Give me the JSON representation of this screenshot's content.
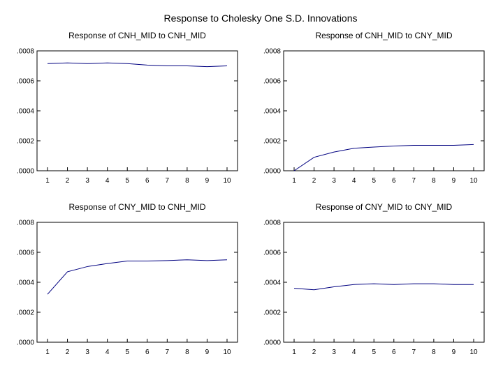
{
  "title": "Response to Cholesky One S.D. Innovations",
  "chart_data": [
    {
      "type": "line",
      "title": "Response of CNH_MID to CNH_MID",
      "x": [
        1,
        2,
        3,
        4,
        5,
        6,
        7,
        8,
        9,
        10
      ],
      "values": [
        0.000715,
        0.00072,
        0.000715,
        0.00072,
        0.000715,
        0.000705,
        0.0007,
        0.0007,
        0.000695,
        0.0007
      ],
      "ylim": [
        0,
        0.0008
      ],
      "yticks": [
        0,
        0.0002,
        0.0004,
        0.0006,
        0.0008
      ],
      "ytick_labels": [
        ".0000",
        ".0002",
        ".0004",
        ".0006",
        ".0008"
      ],
      "color": "#000080"
    },
    {
      "type": "line",
      "title": "Response of CNH_MID to CNY_MID",
      "x": [
        1,
        2,
        3,
        4,
        5,
        6,
        7,
        8,
        9,
        10
      ],
      "values": [
        0.0,
        9e-05,
        0.000125,
        0.00015,
        0.000158,
        0.000165,
        0.00017,
        0.00017,
        0.00017,
        0.000175
      ],
      "ylim": [
        0,
        0.0008
      ],
      "yticks": [
        0,
        0.0002,
        0.0004,
        0.0006,
        0.0008
      ],
      "ytick_labels": [
        ".0000",
        ".0002",
        ".0004",
        ".0006",
        ".0008"
      ],
      "color": "#000080"
    },
    {
      "type": "line",
      "title": "Response of CNY_MID to CNH_MID",
      "x": [
        1,
        2,
        3,
        4,
        5,
        6,
        7,
        8,
        9,
        10
      ],
      "values": [
        0.00032,
        0.00047,
        0.000505,
        0.000525,
        0.000542,
        0.000542,
        0.000545,
        0.00055,
        0.000545,
        0.00055
      ],
      "ylim": [
        0,
        0.0008
      ],
      "yticks": [
        0,
        0.0002,
        0.0004,
        0.0006,
        0.0008
      ],
      "ytick_labels": [
        ".0000",
        ".0002",
        ".0004",
        ".0006",
        ".0008"
      ],
      "color": "#000080"
    },
    {
      "type": "line",
      "title": "Response of CNY_MID to CNY_MID",
      "x": [
        1,
        2,
        3,
        4,
        5,
        6,
        7,
        8,
        9,
        10
      ],
      "values": [
        0.00036,
        0.00035,
        0.00037,
        0.000385,
        0.00039,
        0.000385,
        0.00039,
        0.00039,
        0.000385,
        0.000385
      ],
      "ylim": [
        0,
        0.0008
      ],
      "yticks": [
        0,
        0.0002,
        0.0004,
        0.0006,
        0.0008
      ],
      "ytick_labels": [
        ".0000",
        ".0002",
        ".0004",
        ".0006",
        ".0008"
      ],
      "color": "#000080"
    }
  ]
}
